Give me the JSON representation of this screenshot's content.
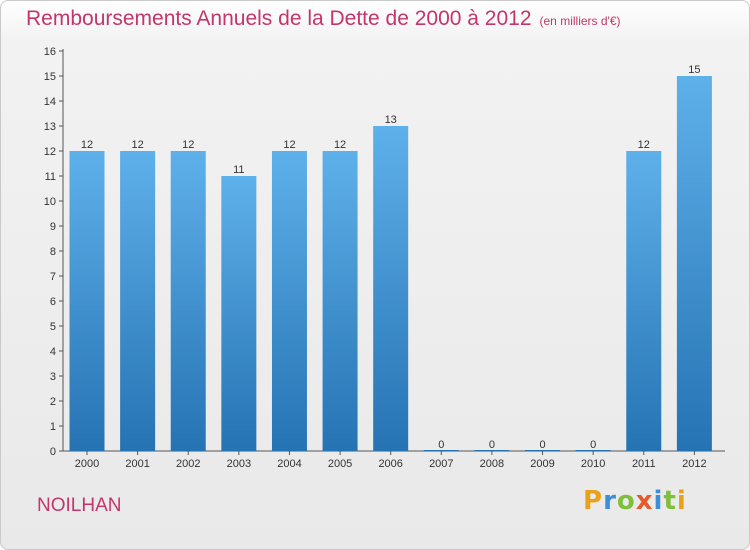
{
  "header": {
    "title": "Remboursements Annuels de la Dette de 2000 à 2012",
    "subtitle": "(en milliers d'€)"
  },
  "commune": "NOILHAN",
  "logo": {
    "letters": [
      "P",
      "r",
      "o",
      "x",
      "i",
      "t",
      "i"
    ],
    "colors": [
      "#e8a21a",
      "#3c8ed8",
      "#7fbf3a",
      "#e85a2a",
      "#3c8ed8",
      "#7fbf3a",
      "#e8a21a"
    ]
  },
  "colors": {
    "title": "#c4366b",
    "bar_top": "#5eb0ea",
    "bar_bottom": "#2673b3"
  },
  "chart_data": {
    "type": "bar",
    "categories": [
      "2000",
      "2001",
      "2002",
      "2003",
      "2004",
      "2005",
      "2006",
      "2007",
      "2008",
      "2009",
      "2010",
      "2011",
      "2012"
    ],
    "values": [
      12,
      12,
      12,
      11,
      12,
      12,
      13,
      0,
      0,
      0,
      0,
      12,
      15
    ],
    "title": "Remboursements Annuels de la Dette de 2000 à 2012",
    "subtitle": "(en milliers d'€)",
    "ylim": [
      0,
      16
    ],
    "yticks": [
      0,
      1,
      2,
      3,
      4,
      5,
      6,
      7,
      8,
      9,
      10,
      11,
      12,
      13,
      14,
      15,
      16
    ],
    "grid": false
  }
}
